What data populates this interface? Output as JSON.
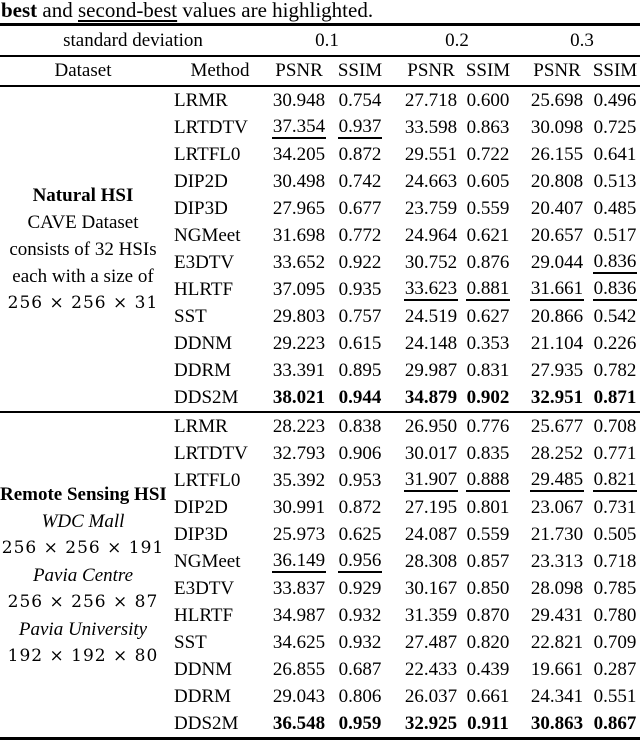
{
  "caption": {
    "best_word": "best",
    "mid_text": " and ",
    "second_best_word": "second-best",
    "tail_text": " values are highlighted."
  },
  "colors": {
    "text": "#000000",
    "rule": "#000000",
    "background": "#ffffff"
  },
  "table": {
    "header": {
      "std_dev_label": "standard deviation",
      "noise_levels": [
        "0.1",
        "0.2",
        "0.3"
      ],
      "dataset_col": "Dataset",
      "method_col": "Method",
      "metric_cols": [
        "PSNR",
        "SSIM"
      ]
    },
    "highlight_legend": {
      "best": "bold",
      "second_best": "underline"
    },
    "blocks": [
      {
        "dataset_lines": [
          {
            "text": "Natural HSI",
            "style": "bold"
          },
          {
            "text": "CAVE Dataset",
            "style": "normal"
          },
          {
            "text": "consists of 32 HSIs",
            "style": "normal"
          },
          {
            "text": "each with a size of",
            "style": "normal"
          },
          {
            "text": "256 × 256 × 31",
            "style": "math"
          }
        ],
        "rows": [
          {
            "method": "LRMR",
            "values": [
              "30.948",
              "0.754",
              "27.718",
              "0.600",
              "25.698",
              "0.496"
            ],
            "styles": [
              "n",
              "n",
              "n",
              "n",
              "n",
              "n"
            ]
          },
          {
            "method": "LRTDTV",
            "values": [
              "37.354",
              "0.937",
              "33.598",
              "0.863",
              "30.098",
              "0.725"
            ],
            "styles": [
              "u",
              "u",
              "n",
              "n",
              "n",
              "n"
            ]
          },
          {
            "method": "LRTFL0",
            "values": [
              "34.205",
              "0.872",
              "29.551",
              "0.722",
              "26.155",
              "0.641"
            ],
            "styles": [
              "n",
              "n",
              "n",
              "n",
              "n",
              "n"
            ]
          },
          {
            "method": "DIP2D",
            "values": [
              "30.498",
              "0.742",
              "24.663",
              "0.605",
              "20.808",
              "0.513"
            ],
            "styles": [
              "n",
              "n",
              "n",
              "n",
              "n",
              "n"
            ]
          },
          {
            "method": "DIP3D",
            "values": [
              "27.965",
              "0.677",
              "23.759",
              "0.559",
              "20.407",
              "0.485"
            ],
            "styles": [
              "n",
              "n",
              "n",
              "n",
              "n",
              "n"
            ]
          },
          {
            "method": "NGMeet",
            "values": [
              "31.698",
              "0.772",
              "24.964",
              "0.621",
              "20.657",
              "0.517"
            ],
            "styles": [
              "n",
              "n",
              "n",
              "n",
              "n",
              "n"
            ]
          },
          {
            "method": "E3DTV",
            "values": [
              "33.652",
              "0.922",
              "30.752",
              "0.876",
              "29.044",
              "0.836"
            ],
            "styles": [
              "n",
              "n",
              "n",
              "n",
              "n",
              "u"
            ]
          },
          {
            "method": "HLRTF",
            "values": [
              "37.095",
              "0.935",
              "33.623",
              "0.881",
              "31.661",
              "0.836"
            ],
            "styles": [
              "n",
              "n",
              "u",
              "u",
              "u",
              "u"
            ]
          },
          {
            "method": "SST",
            "values": [
              "29.803",
              "0.757",
              "24.519",
              "0.627",
              "20.866",
              "0.542"
            ],
            "styles": [
              "n",
              "n",
              "n",
              "n",
              "n",
              "n"
            ]
          },
          {
            "method": "DDNM",
            "values": [
              "29.223",
              "0.615",
              "24.148",
              "0.353",
              "21.104",
              "0.226"
            ],
            "styles": [
              "n",
              "n",
              "n",
              "n",
              "n",
              "n"
            ]
          },
          {
            "method": "DDRM",
            "values": [
              "33.391",
              "0.895",
              "29.987",
              "0.831",
              "27.935",
              "0.782"
            ],
            "styles": [
              "n",
              "n",
              "n",
              "n",
              "n",
              "n"
            ]
          },
          {
            "method": "DDS2M",
            "values": [
              "38.021",
              "0.944",
              "34.879",
              "0.902",
              "32.951",
              "0.871"
            ],
            "styles": [
              "b",
              "b",
              "b",
              "b",
              "b",
              "b"
            ]
          }
        ]
      },
      {
        "dataset_lines": [
          {
            "text": "Remote Sensing HSI",
            "style": "bold"
          },
          {
            "text": "WDC Mall",
            "style": "italic"
          },
          {
            "text": "256 × 256 × 191",
            "style": "math"
          },
          {
            "text": "Pavia Centre",
            "style": "italic"
          },
          {
            "text": "256 × 256 × 87",
            "style": "math"
          },
          {
            "text": "Pavia University",
            "style": "italic"
          },
          {
            "text": "192 × 192 × 80",
            "style": "math"
          }
        ],
        "rows": [
          {
            "method": "LRMR",
            "values": [
              "28.223",
              "0.838",
              "26.950",
              "0.776",
              "25.677",
              "0.708"
            ],
            "styles": [
              "n",
              "n",
              "n",
              "n",
              "n",
              "n"
            ]
          },
          {
            "method": "LRTDTV",
            "values": [
              "32.793",
              "0.906",
              "30.017",
              "0.835",
              "28.252",
              "0.771"
            ],
            "styles": [
              "n",
              "n",
              "n",
              "n",
              "n",
              "n"
            ]
          },
          {
            "method": "LRTFL0",
            "values": [
              "35.392",
              "0.953",
              "31.907",
              "0.888",
              "29.485",
              "0.821"
            ],
            "styles": [
              "n",
              "n",
              "u",
              "u",
              "u",
              "u"
            ]
          },
          {
            "method": "DIP2D",
            "values": [
              "30.991",
              "0.872",
              "27.195",
              "0.801",
              "23.067",
              "0.731"
            ],
            "styles": [
              "n",
              "n",
              "n",
              "n",
              "n",
              "n"
            ]
          },
          {
            "method": "DIP3D",
            "values": [
              "25.973",
              "0.625",
              "24.087",
              "0.559",
              "21.730",
              "0.505"
            ],
            "styles": [
              "n",
              "n",
              "n",
              "n",
              "n",
              "n"
            ]
          },
          {
            "method": "NGMeet",
            "values": [
              "36.149",
              "0.956",
              "28.308",
              "0.857",
              "23.313",
              "0.718"
            ],
            "styles": [
              "u",
              "u",
              "n",
              "n",
              "n",
              "n"
            ]
          },
          {
            "method": "E3DTV",
            "values": [
              "33.837",
              "0.929",
              "30.167",
              "0.850",
              "28.098",
              "0.785"
            ],
            "styles": [
              "n",
              "n",
              "n",
              "n",
              "n",
              "n"
            ]
          },
          {
            "method": "HLRTF",
            "values": [
              "34.987",
              "0.932",
              "31.359",
              "0.870",
              "29.431",
              "0.780"
            ],
            "styles": [
              "n",
              "n",
              "n",
              "n",
              "n",
              "n"
            ]
          },
          {
            "method": "SST",
            "values": [
              "34.625",
              "0.932",
              "27.487",
              "0.820",
              "22.821",
              "0.709"
            ],
            "styles": [
              "n",
              "n",
              "n",
              "n",
              "n",
              "n"
            ]
          },
          {
            "method": "DDNM",
            "values": [
              "26.855",
              "0.687",
              "22.433",
              "0.439",
              "19.661",
              "0.287"
            ],
            "styles": [
              "n",
              "n",
              "n",
              "n",
              "n",
              "n"
            ]
          },
          {
            "method": "DDRM",
            "values": [
              "29.043",
              "0.806",
              "26.037",
              "0.661",
              "24.341",
              "0.551"
            ],
            "styles": [
              "n",
              "n",
              "n",
              "n",
              "n",
              "n"
            ]
          },
          {
            "method": "DDS2M",
            "values": [
              "36.548",
              "0.959",
              "32.925",
              "0.911",
              "30.863",
              "0.867"
            ],
            "styles": [
              "b",
              "b",
              "b",
              "b",
              "b",
              "b"
            ]
          }
        ]
      }
    ]
  }
}
